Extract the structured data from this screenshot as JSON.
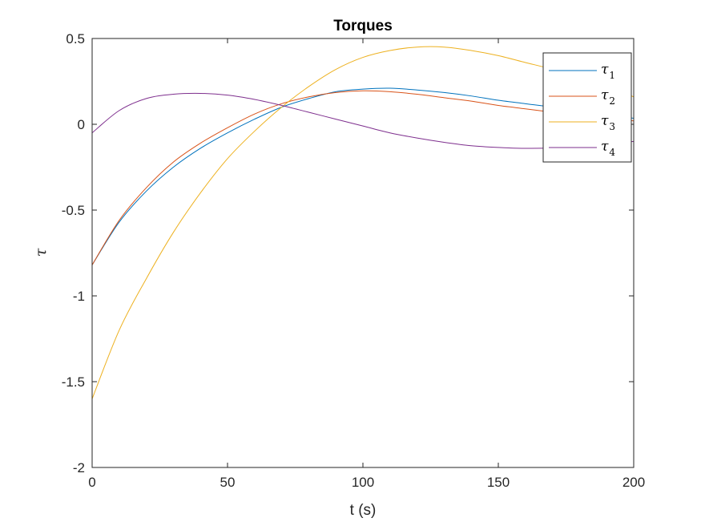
{
  "chart_data": {
    "type": "line",
    "title": "Torques",
    "xlabel": "t (s)",
    "ylabel": "τ",
    "xlim": [
      0,
      200
    ],
    "ylim": [
      -2,
      0.5
    ],
    "xticks": [
      0,
      50,
      100,
      150,
      200
    ],
    "xtick_labels": [
      "0",
      "50",
      "100",
      "150",
      "200"
    ],
    "yticks": [
      -2,
      -1.5,
      -1,
      -0.5,
      0,
      0.5
    ],
    "ytick_labels": [
      "-2",
      "-1.5",
      "-1",
      "-0.5",
      "0",
      "0.5"
    ],
    "grid": false,
    "legend_position": "top-right",
    "x": [
      0,
      10,
      20,
      30,
      40,
      50,
      60,
      70,
      80,
      90,
      100,
      110,
      120,
      130,
      140,
      150,
      160,
      170,
      180,
      190,
      200
    ],
    "series": [
      {
        "name": "τ",
        "subscript": "1",
        "color": "#0072BD",
        "values": [
          -0.82,
          -0.57,
          -0.39,
          -0.25,
          -0.14,
          -0.05,
          0.03,
          0.1,
          0.15,
          0.19,
          0.205,
          0.21,
          0.2,
          0.185,
          0.165,
          0.14,
          0.12,
          0.1,
          0.075,
          0.055,
          0.035
        ]
      },
      {
        "name": "τ",
        "subscript": "2",
        "color": "#D95319",
        "values": [
          -0.82,
          -0.56,
          -0.37,
          -0.22,
          -0.11,
          -0.02,
          0.06,
          0.12,
          0.16,
          0.185,
          0.195,
          0.19,
          0.175,
          0.155,
          0.135,
          0.11,
          0.09,
          0.07,
          0.05,
          0.035,
          0.02
        ]
      },
      {
        "name": "τ",
        "subscript": "3",
        "color": "#EDB120",
        "values": [
          -1.6,
          -1.2,
          -0.9,
          -0.63,
          -0.4,
          -0.2,
          -0.04,
          0.1,
          0.22,
          0.32,
          0.39,
          0.43,
          0.45,
          0.45,
          0.43,
          0.4,
          0.36,
          0.32,
          0.27,
          0.22,
          0.16
        ]
      },
      {
        "name": "τ",
        "subscript": "4",
        "color": "#7E2F8E",
        "values": [
          -0.05,
          0.08,
          0.15,
          0.175,
          0.18,
          0.17,
          0.145,
          0.11,
          0.07,
          0.03,
          -0.01,
          -0.05,
          -0.08,
          -0.105,
          -0.125,
          -0.135,
          -0.14,
          -0.138,
          -0.13,
          -0.115,
          -0.1
        ]
      }
    ]
  }
}
